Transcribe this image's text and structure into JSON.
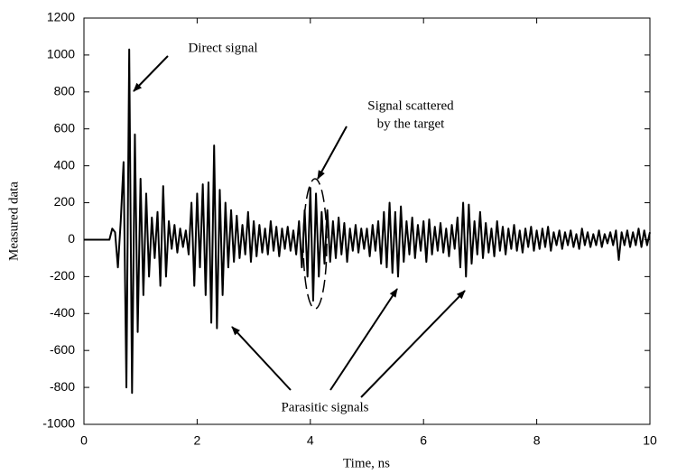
{
  "chart_data": {
    "type": "line",
    "xlabel": "Time, ns",
    "ylabel": "Measured data",
    "annotations": [
      "Direct signal",
      "Signal scattered",
      "by the target",
      "Parasitic signals"
    ],
    "xlim": [
      0,
      10
    ],
    "xticks": [
      0,
      2,
      4,
      6,
      8,
      10
    ],
    "ylim": [
      -1000,
      1200
    ],
    "yticks": [
      -1000,
      -800,
      -600,
      -400,
      -200,
      0,
      200,
      400,
      600,
      800,
      1000,
      1200
    ],
    "grid": false,
    "x": [
      0,
      0.45,
      0.5,
      0.55,
      0.6,
      0.65,
      0.7,
      0.75,
      0.8,
      0.85,
      0.9,
      0.95,
      1,
      1.05,
      1.1,
      1.15,
      1.2,
      1.25,
      1.3,
      1.35,
      1.4,
      1.45,
      1.5,
      1.55,
      1.6,
      1.65,
      1.7,
      1.75,
      1.8,
      1.85,
      1.9,
      1.95,
      2,
      2.05,
      2.1,
      2.15,
      2.2,
      2.25,
      2.3,
      2.35,
      2.4,
      2.45,
      2.5,
      2.55,
      2.6,
      2.65,
      2.7,
      2.75,
      2.8,
      2.85,
      2.9,
      2.95,
      3,
      3.05,
      3.1,
      3.15,
      3.2,
      3.25,
      3.3,
      3.35,
      3.4,
      3.45,
      3.5,
      3.55,
      3.6,
      3.65,
      3.7,
      3.75,
      3.8,
      3.85,
      3.9,
      3.95,
      4,
      4.05,
      4.1,
      4.15,
      4.2,
      4.25,
      4.3,
      4.35,
      4.4,
      4.45,
      4.5,
      4.55,
      4.6,
      4.65,
      4.7,
      4.75,
      4.8,
      4.85,
      4.9,
      4.95,
      5,
      5.05,
      5.1,
      5.15,
      5.2,
      5.25,
      5.3,
      5.35,
      5.4,
      5.45,
      5.5,
      5.55,
      5.6,
      5.65,
      5.7,
      5.75,
      5.8,
      5.85,
      5.9,
      5.95,
      6,
      6.05,
      6.1,
      6.15,
      6.2,
      6.25,
      6.3,
      6.35,
      6.4,
      6.45,
      6.5,
      6.55,
      6.6,
      6.65,
      6.7,
      6.75,
      6.8,
      6.85,
      6.9,
      6.95,
      7,
      7.05,
      7.1,
      7.15,
      7.2,
      7.25,
      7.3,
      7.35,
      7.4,
      7.45,
      7.5,
      7.55,
      7.6,
      7.65,
      7.7,
      7.75,
      7.8,
      7.85,
      7.9,
      7.95,
      8,
      8.05,
      8.1,
      8.15,
      8.2,
      8.25,
      8.3,
      8.35,
      8.4,
      8.45,
      8.5,
      8.55,
      8.6,
      8.65,
      8.7,
      8.75,
      8.8,
      8.85,
      8.9,
      8.95,
      9,
      9.05,
      9.1,
      9.15,
      9.2,
      9.25,
      9.3,
      9.35,
      9.4,
      9.45,
      9.5,
      9.55,
      9.6,
      9.65,
      9.7,
      9.75,
      9.8,
      9.85,
      9.9,
      9.95,
      10
    ],
    "series": [
      {
        "color": "#000000",
        "values": [
          0,
          0,
          60,
          40,
          -150,
          100,
          420,
          -800,
          1030,
          -830,
          570,
          -500,
          330,
          -300,
          250,
          -200,
          120,
          -100,
          150,
          -250,
          290,
          -200,
          100,
          -50,
          80,
          -70,
          60,
          -40,
          50,
          -80,
          200,
          -250,
          250,
          -150,
          300,
          -300,
          310,
          -450,
          510,
          -480,
          270,
          -300,
          200,
          -150,
          160,
          -120,
          130,
          -100,
          80,
          -80,
          150,
          -120,
          100,
          -90,
          80,
          -70,
          60,
          -80,
          100,
          -60,
          70,
          -90,
          60,
          -50,
          70,
          -60,
          50,
          -80,
          100,
          -150,
          160,
          -200,
          280,
          -330,
          250,
          -200,
          150,
          -130,
          160,
          -120,
          100,
          -100,
          120,
          -80,
          90,
          -120,
          60,
          -60,
          80,
          -70,
          60,
          -50,
          60,
          -90,
          80,
          -60,
          100,
          -130,
          150,
          -150,
          200,
          -180,
          150,
          -200,
          180,
          -120,
          100,
          -80,
          120,
          -100,
          80,
          -60,
          100,
          -120,
          110,
          -80,
          70,
          -60,
          90,
          -70,
          60,
          -90,
          80,
          -50,
          120,
          -150,
          200,
          -200,
          190,
          -130,
          100,
          -80,
          150,
          -100,
          90,
          -70,
          60,
          -90,
          100,
          -60,
          70,
          -80,
          60,
          -50,
          80,
          -60,
          50,
          -70,
          60,
          -40,
          70,
          -60,
          50,
          -50,
          60,
          -40,
          70,
          -60,
          40,
          -30,
          50,
          -50,
          40,
          -30,
          50,
          -40,
          30,
          -50,
          60,
          -30,
          40,
          -40,
          30,
          -30,
          50,
          -40,
          30,
          -20,
          40,
          -30,
          50,
          -110,
          40,
          -30,
          50,
          -40,
          40,
          -30,
          60,
          -40,
          50,
          -30,
          40
        ]
      }
    ]
  }
}
